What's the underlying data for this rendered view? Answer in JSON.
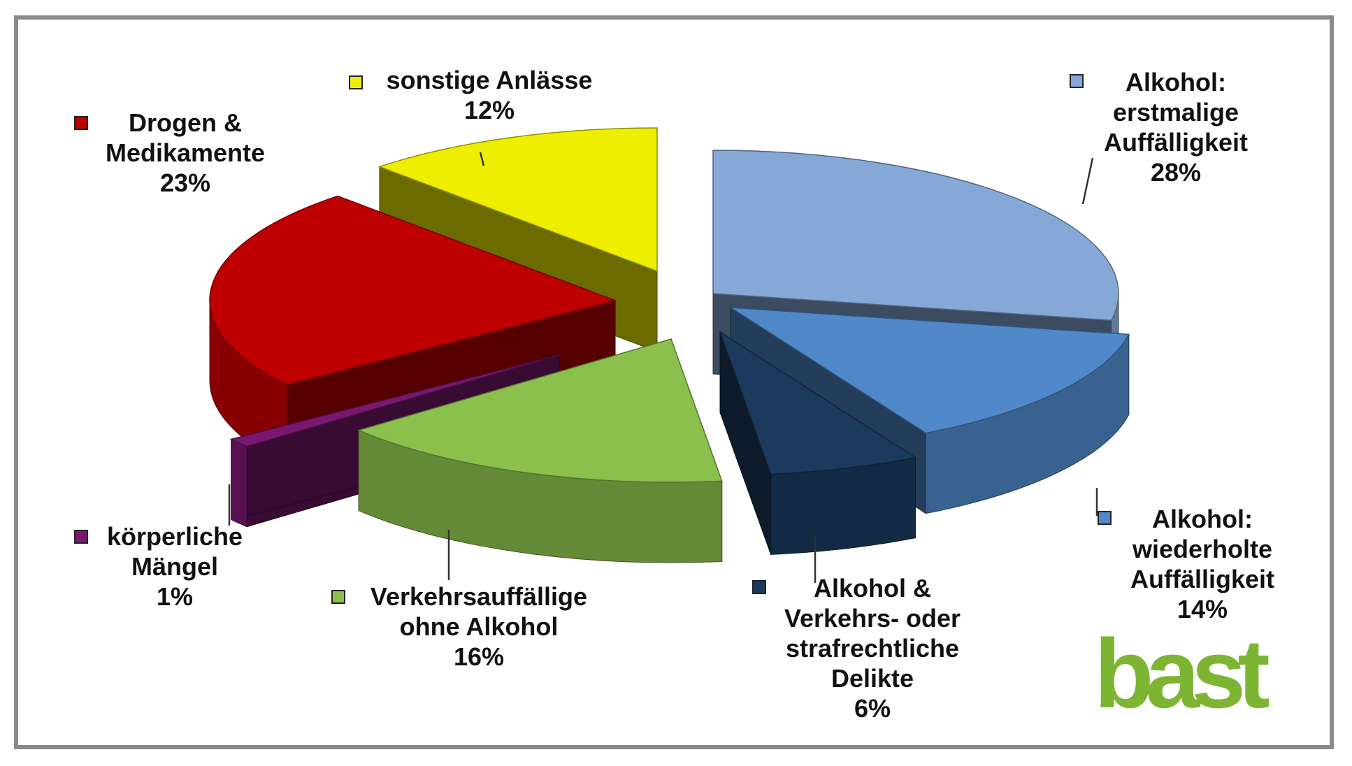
{
  "chart_data": {
    "type": "pie",
    "style": "3d-exploded",
    "slices": [
      {
        "label_lines": [
          "Alkohol:",
          "erstmalige",
          "Auffälligkeit"
        ],
        "value": 28,
        "value_label": "28%",
        "color": "#86A8D6"
      },
      {
        "label_lines": [
          "Alkohol:",
          "wiederholte",
          "Auffälligkeit"
        ],
        "value": 14,
        "value_label": "14%",
        "color": "#5088C9"
      },
      {
        "label_lines": [
          "Alkohol &",
          "Verkehrs- oder",
          "strafrechtliche",
          "Delikte"
        ],
        "value": 6,
        "value_label": "6%",
        "color": "#1B3A5E"
      },
      {
        "label_lines": [
          "Verkehrsauffällige",
          "ohne Alkohol"
        ],
        "value": 16,
        "value_label": "16%",
        "color": "#8CC04C"
      },
      {
        "label_lines": [
          "körperliche",
          "Mängel"
        ],
        "value": 1,
        "value_label": "1%",
        "color": "#7A1870"
      },
      {
        "label_lines": [
          "Drogen &",
          "Medikamente"
        ],
        "value": 23,
        "value_label": "23%",
        "color": "#BE0000"
      },
      {
        "label_lines": [
          "sonstige Anlässe"
        ],
        "value": 12,
        "value_label": "12%",
        "color": "#EEEE00"
      }
    ]
  },
  "logo": {
    "text": "bast",
    "color": "#7DB532"
  }
}
